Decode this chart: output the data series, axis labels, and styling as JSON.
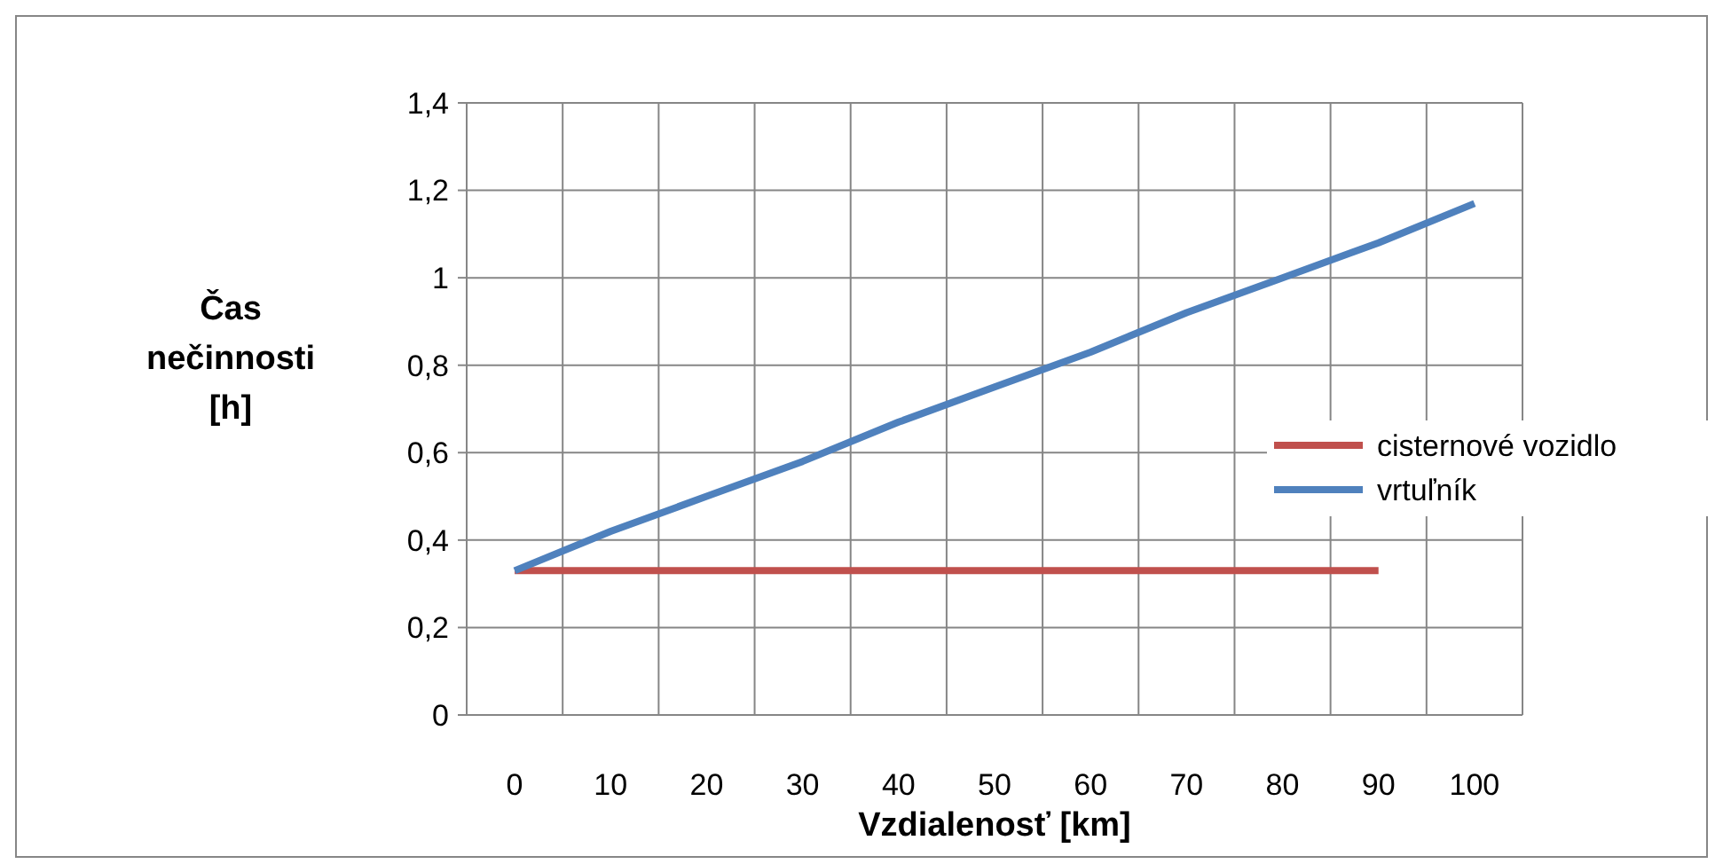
{
  "chart_data": {
    "type": "line",
    "xlabel": "Vzdialenosť [km]",
    "ylabel": "Čas nečinnosti [h]",
    "categories": [
      "0",
      "10",
      "20",
      "30",
      "40",
      "50",
      "60",
      "70",
      "80",
      "90",
      "100"
    ],
    "series": [
      {
        "name": "cisternové vozidlo",
        "color": "#c0504d",
        "values": [
          0.33,
          0.33,
          0.33,
          0.33,
          0.33,
          0.33,
          0.33,
          0.33,
          0.33,
          0.33,
          null
        ]
      },
      {
        "name": "vrtuľník",
        "color": "#4f81bd",
        "values": [
          0.33,
          0.42,
          0.5,
          0.58,
          0.67,
          0.75,
          0.83,
          0.92,
          1.0,
          1.08,
          1.17
        ]
      }
    ],
    "ylim": [
      0,
      1.4
    ],
    "yticks": [
      0,
      {
        "value": 0.2,
        "label": "0,2"
      },
      {
        "value": 0.4,
        "label": "0,4"
      },
      {
        "value": 0.6,
        "label": "0,6"
      },
      {
        "value": 0.8,
        "label": "0,8"
      },
      1,
      {
        "value": 1.2,
        "label": "1,2"
      },
      {
        "value": 1.4,
        "label": "1,4"
      }
    ],
    "grid": true,
    "legend": "right",
    "line_style": "solid"
  }
}
